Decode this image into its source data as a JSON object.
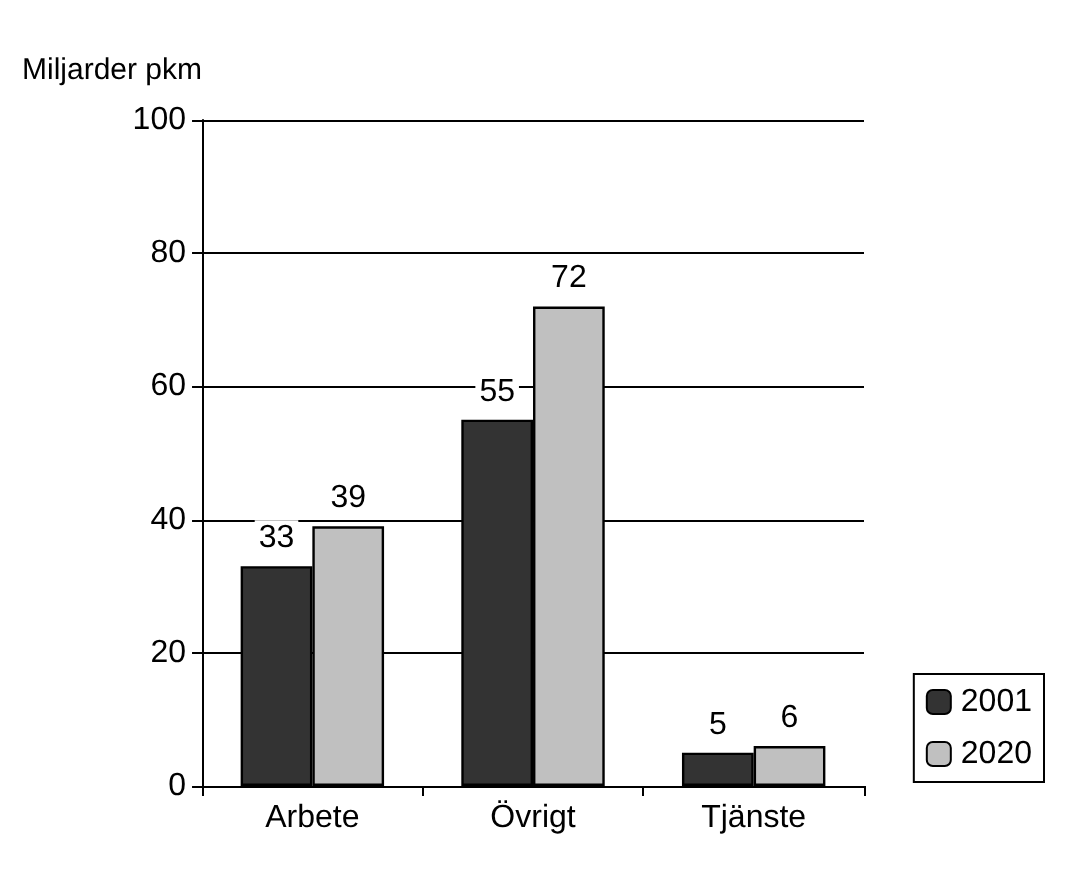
{
  "chart_data": {
    "type": "bar",
    "ylabel": "Miljarder pkm",
    "categories": [
      "Arbete",
      "Övrigt",
      "Tjänste"
    ],
    "series": [
      {
        "name": "2001",
        "color": "#333333",
        "values": [
          33,
          55,
          5
        ]
      },
      {
        "name": "2020",
        "color": "#c0c0c0",
        "values": [
          39,
          72,
          6
        ]
      }
    ],
    "ylim": [
      0,
      100
    ],
    "yticks": [
      0,
      20,
      40,
      60,
      80,
      100
    ],
    "grid": "y",
    "legend": "bottom right",
    "data_labels": true
  }
}
